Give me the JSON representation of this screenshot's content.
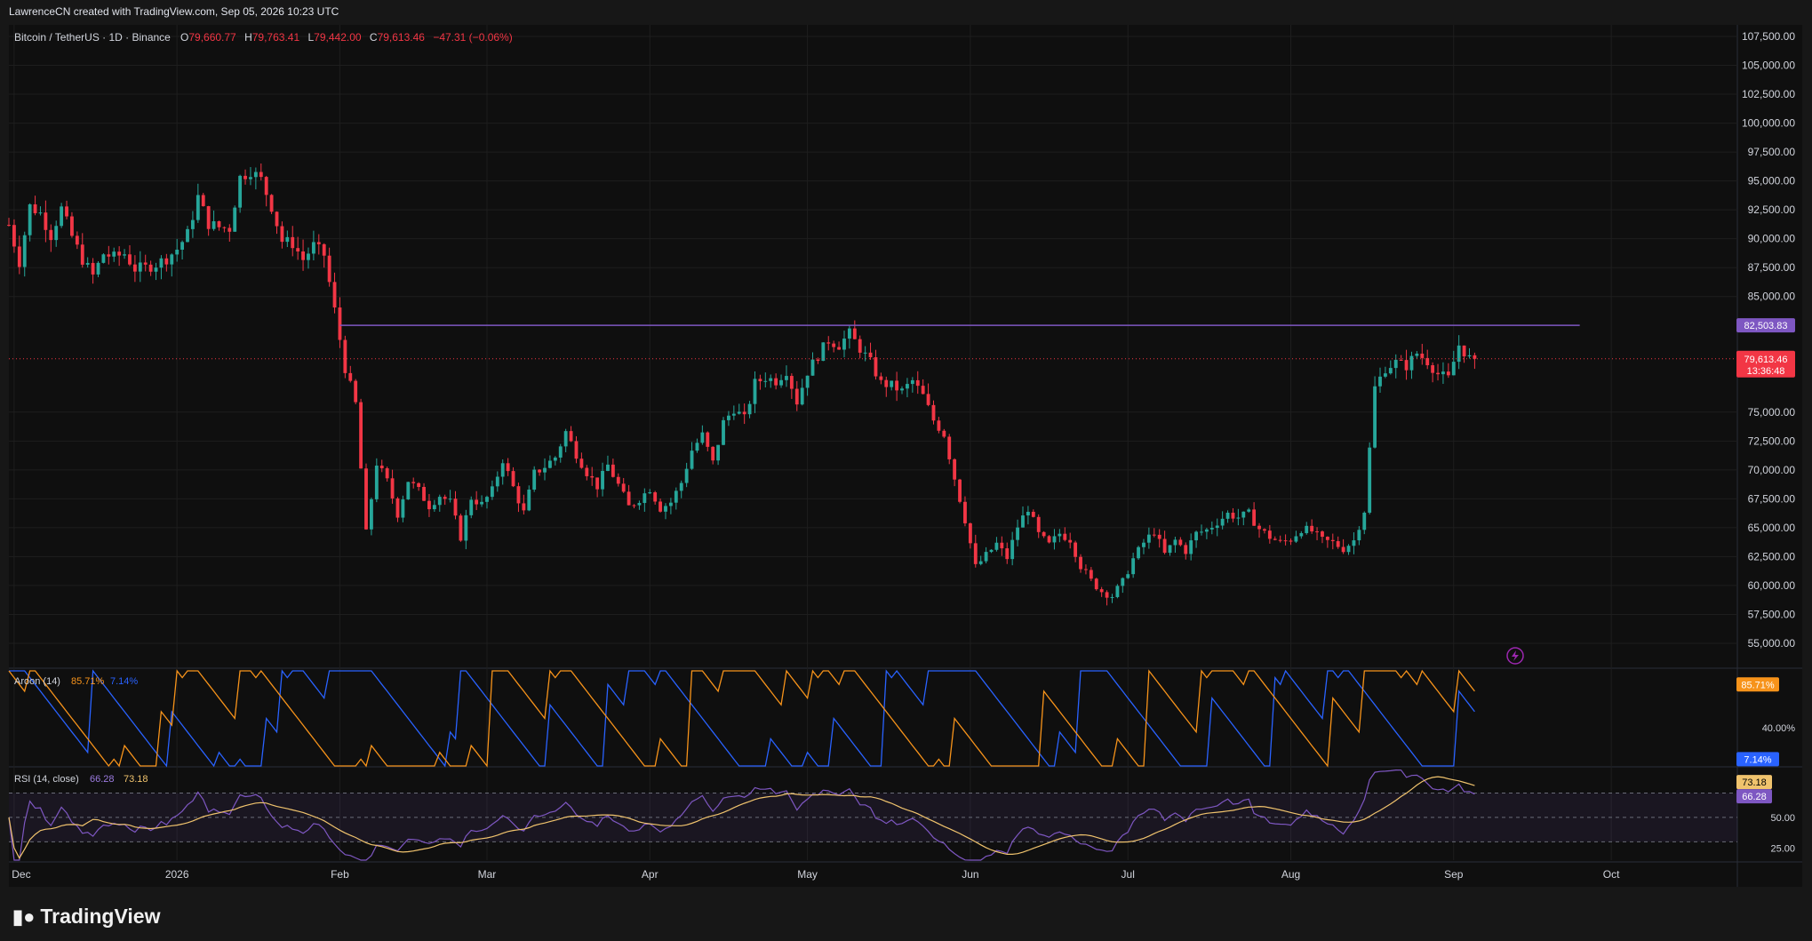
{
  "header": {
    "credit": "LawrenceCN created with TradingView.com, Sep 05, 2026 10:23 UTC"
  },
  "legend": {
    "symbol": "Bitcoin / TetherUS · 1D · Binance",
    "open_label": "O",
    "open": "79,660.77",
    "high_label": "H",
    "high": "79,763.41",
    "low_label": "L",
    "low": "79,442.00",
    "close_label": "C",
    "close": "79,613.46",
    "change": "−47.31 (−0.06%)"
  },
  "brand": {
    "name": "TradingView",
    "logo_icon": "tradingview-logo-icon"
  },
  "colors": {
    "up": "#26a69a",
    "down": "#f23645",
    "resistance": "#7e57c2",
    "aroon_up": "#f7931a",
    "aroon_down": "#2962ff",
    "rsi": "#7e57c2",
    "rsi_ma": "#f0c36d"
  },
  "chart_data": [
    {
      "type": "candlestick",
      "ylim": [
        53000,
        108500
      ],
      "y_ticks": [
        "107,500.00",
        "105,000.00",
        "102,500.00",
        "100,000.00",
        "97,500.00",
        "95,000.00",
        "92,500.00",
        "90,000.00",
        "87,500.00",
        "85,000.00",
        "75,000.00",
        "72,500.00",
        "70,000.00",
        "67,500.00",
        "65,000.00",
        "62,500.00",
        "60,000.00",
        "57,500.00",
        "55,000.00"
      ],
      "y_tick_values": [
        107500,
        105000,
        102500,
        100000,
        97500,
        95000,
        92500,
        90000,
        87500,
        85000,
        75000,
        72500,
        70000,
        67500,
        65000,
        62500,
        60000,
        57500,
        55000
      ],
      "x_ticks": [
        "Dec",
        "2026",
        "Feb",
        "Mar",
        "Apr",
        "May",
        "Jun",
        "Jul",
        "Aug",
        "Sep",
        "Oct"
      ],
      "x_tick_dates": [
        "2025-12-01",
        "2026-01-01",
        "2026-02-01",
        "2026-03-01",
        "2026-04-01",
        "2026-05-01",
        "2026-06-01",
        "2026-07-01",
        "2026-08-01",
        "2026-09-01",
        "2026-10-01"
      ],
      "date_range": [
        "2025-11-30",
        "2026-10-25"
      ],
      "resistance": {
        "value": 82503.83,
        "label": "82,503.83",
        "from": "2026-02-01",
        "to": "2026-09-25"
      },
      "last_price": {
        "value": 79613.46,
        "label": "79,613.46",
        "countdown": "13:36:48"
      },
      "closes": [
        [
          "2025-11-30",
          91200
        ],
        [
          "2025-12-02",
          88000
        ],
        [
          "2025-12-04",
          92800
        ],
        [
          "2025-12-06",
          92200
        ],
        [
          "2025-12-08",
          90300
        ],
        [
          "2025-12-10",
          92600
        ],
        [
          "2025-12-12",
          90200
        ],
        [
          "2025-12-14",
          88200
        ],
        [
          "2025-12-16",
          86800
        ],
        [
          "2025-12-18",
          88700
        ],
        [
          "2025-12-20",
          88400
        ],
        [
          "2025-12-22",
          88700
        ],
        [
          "2025-12-24",
          87400
        ],
        [
          "2025-12-26",
          87500
        ],
        [
          "2025-12-28",
          87800
        ],
        [
          "2025-12-30",
          88300
        ],
        [
          "2026-01-01",
          89100
        ],
        [
          "2026-01-03",
          90400
        ],
        [
          "2026-01-05",
          93600
        ],
        [
          "2026-01-07",
          91300
        ],
        [
          "2026-01-09",
          91000
        ],
        [
          "2026-01-11",
          90900
        ],
        [
          "2026-01-13",
          95300
        ],
        [
          "2026-01-15",
          95900
        ],
        [
          "2026-01-17",
          95100
        ],
        [
          "2026-01-19",
          92800
        ],
        [
          "2026-01-21",
          89800
        ],
        [
          "2026-01-23",
          89600
        ],
        [
          "2026-01-25",
          88200
        ],
        [
          "2026-01-27",
          89400
        ],
        [
          "2026-01-29",
          88600
        ],
        [
          "2026-01-31",
          83800
        ],
        [
          "2026-02-02",
          78800
        ],
        [
          "2026-02-04",
          75700
        ],
        [
          "2026-02-06",
          64500
        ],
        [
          "2026-02-08",
          70600
        ],
        [
          "2026-02-10",
          69000
        ],
        [
          "2026-02-12",
          66200
        ],
        [
          "2026-02-14",
          69100
        ],
        [
          "2026-02-16",
          68200
        ],
        [
          "2026-02-18",
          66900
        ],
        [
          "2026-02-20",
          67800
        ],
        [
          "2026-02-22",
          67200
        ],
        [
          "2026-02-24",
          64200
        ],
        [
          "2026-02-26",
          67600
        ],
        [
          "2026-02-28",
          67000
        ],
        [
          "2026-03-02",
          68200
        ],
        [
          "2026-03-04",
          70900
        ],
        [
          "2026-03-06",
          68500
        ],
        [
          "2026-03-08",
          66300
        ],
        [
          "2026-03-10",
          69700
        ],
        [
          "2026-03-12",
          70300
        ],
        [
          "2026-03-14",
          71100
        ],
        [
          "2026-03-16",
          73300
        ],
        [
          "2026-03-18",
          71400
        ],
        [
          "2026-03-20",
          69800
        ],
        [
          "2026-03-22",
          68600
        ],
        [
          "2026-03-24",
          70400
        ],
        [
          "2026-03-26",
          68700
        ],
        [
          "2026-03-28",
          66800
        ],
        [
          "2026-03-30",
          67500
        ],
        [
          "2026-04-01",
          68400
        ],
        [
          "2026-04-03",
          66700
        ],
        [
          "2026-04-05",
          67200
        ],
        [
          "2026-04-07",
          68900
        ],
        [
          "2026-04-09",
          71700
        ],
        [
          "2026-04-11",
          73000
        ],
        [
          "2026-04-13",
          70600
        ],
        [
          "2026-04-15",
          74100
        ],
        [
          "2026-04-17",
          75300
        ],
        [
          "2026-04-19",
          74400
        ],
        [
          "2026-04-21",
          77500
        ],
        [
          "2026-04-23",
          78000
        ],
        [
          "2026-04-25",
          77700
        ],
        [
          "2026-04-27",
          78600
        ],
        [
          "2026-04-29",
          75900
        ],
        [
          "2026-05-01",
          78500
        ],
        [
          "2026-05-03",
          79900
        ],
        [
          "2026-05-05",
          81200
        ],
        [
          "2026-05-07",
          80800
        ],
        [
          "2026-05-09",
          81800
        ],
        [
          "2026-05-11",
          80500
        ],
        [
          "2026-05-13",
          79300
        ],
        [
          "2026-05-15",
          77500
        ],
        [
          "2026-05-17",
          77300
        ],
        [
          "2026-05-19",
          76800
        ],
        [
          "2026-05-21",
          77700
        ],
        [
          "2026-05-23",
          76400
        ],
        [
          "2026-05-25",
          74300
        ],
        [
          "2026-05-27",
          73100
        ],
        [
          "2026-05-29",
          69300
        ],
        [
          "2026-05-31",
          65700
        ],
        [
          "2026-06-02",
          61600
        ],
        [
          "2026-06-04",
          62600
        ],
        [
          "2026-06-06",
          63600
        ],
        [
          "2026-06-08",
          62400
        ],
        [
          "2026-06-10",
          65100
        ],
        [
          "2026-06-12",
          66700
        ],
        [
          "2026-06-14",
          64400
        ],
        [
          "2026-06-16",
          63500
        ],
        [
          "2026-06-18",
          64500
        ],
        [
          "2026-06-20",
          64000
        ],
        [
          "2026-06-22",
          61700
        ],
        [
          "2026-06-24",
          60400
        ],
        [
          "2026-06-26",
          59500
        ],
        [
          "2026-06-28",
          59100
        ],
        [
          "2026-06-30",
          60300
        ],
        [
          "2026-07-02",
          62300
        ],
        [
          "2026-07-04",
          63700
        ],
        [
          "2026-07-06",
          64700
        ],
        [
          "2026-07-08",
          62700
        ],
        [
          "2026-07-10",
          63900
        ],
        [
          "2026-07-12",
          63000
        ],
        [
          "2026-07-14",
          64500
        ],
        [
          "2026-07-16",
          64800
        ],
        [
          "2026-07-18",
          65500
        ],
        [
          "2026-07-20",
          66200
        ],
        [
          "2026-07-22",
          65900
        ],
        [
          "2026-07-24",
          66200
        ],
        [
          "2026-07-26",
          64900
        ],
        [
          "2026-07-28",
          64200
        ],
        [
          "2026-07-30",
          63700
        ],
        [
          "2026-08-01",
          64000
        ],
        [
          "2026-08-03",
          64900
        ],
        [
          "2026-08-05",
          64700
        ],
        [
          "2026-08-07",
          63900
        ],
        [
          "2026-08-09",
          63700
        ],
        [
          "2026-08-11",
          63200
        ],
        [
          "2026-08-13",
          63900
        ],
        [
          "2026-08-15",
          66500
        ],
        [
          "2026-08-17",
          77100
        ],
        [
          "2026-08-19",
          78800
        ],
        [
          "2026-08-21",
          79300
        ],
        [
          "2026-08-23",
          79000
        ],
        [
          "2026-08-25",
          80100
        ],
        [
          "2026-08-27",
          79400
        ],
        [
          "2026-08-29",
          78300
        ],
        [
          "2026-08-31",
          77900
        ],
        [
          "2026-09-02",
          80800
        ],
        [
          "2026-09-04",
          79660
        ],
        [
          "2026-09-05",
          79613
        ]
      ]
    },
    {
      "type": "line",
      "name": "Aroon (14)",
      "legend_up": "85.71%",
      "legend_down": "7.14%",
      "ylim": [
        0,
        100
      ],
      "y_ticks": [
        "40.00%"
      ],
      "y_tick_values": [
        40
      ],
      "last_up": {
        "value": 85.71,
        "label": "85.71%"
      },
      "last_down": {
        "value": 7.14,
        "label": "7.14%"
      }
    },
    {
      "type": "line",
      "name": "RSI (14, close)",
      "legend_rsi": "66.28",
      "legend_ma": "73.18",
      "ylim": [
        15,
        90
      ],
      "y_ticks": [
        "50.00",
        "25.00"
      ],
      "y_tick_values": [
        50,
        25
      ],
      "bands": [
        70,
        50,
        30
      ],
      "last_rsi": {
        "value": 66.28,
        "label": "66.28"
      },
      "last_ma": {
        "value": 73.18,
        "label": "73.18"
      }
    }
  ]
}
